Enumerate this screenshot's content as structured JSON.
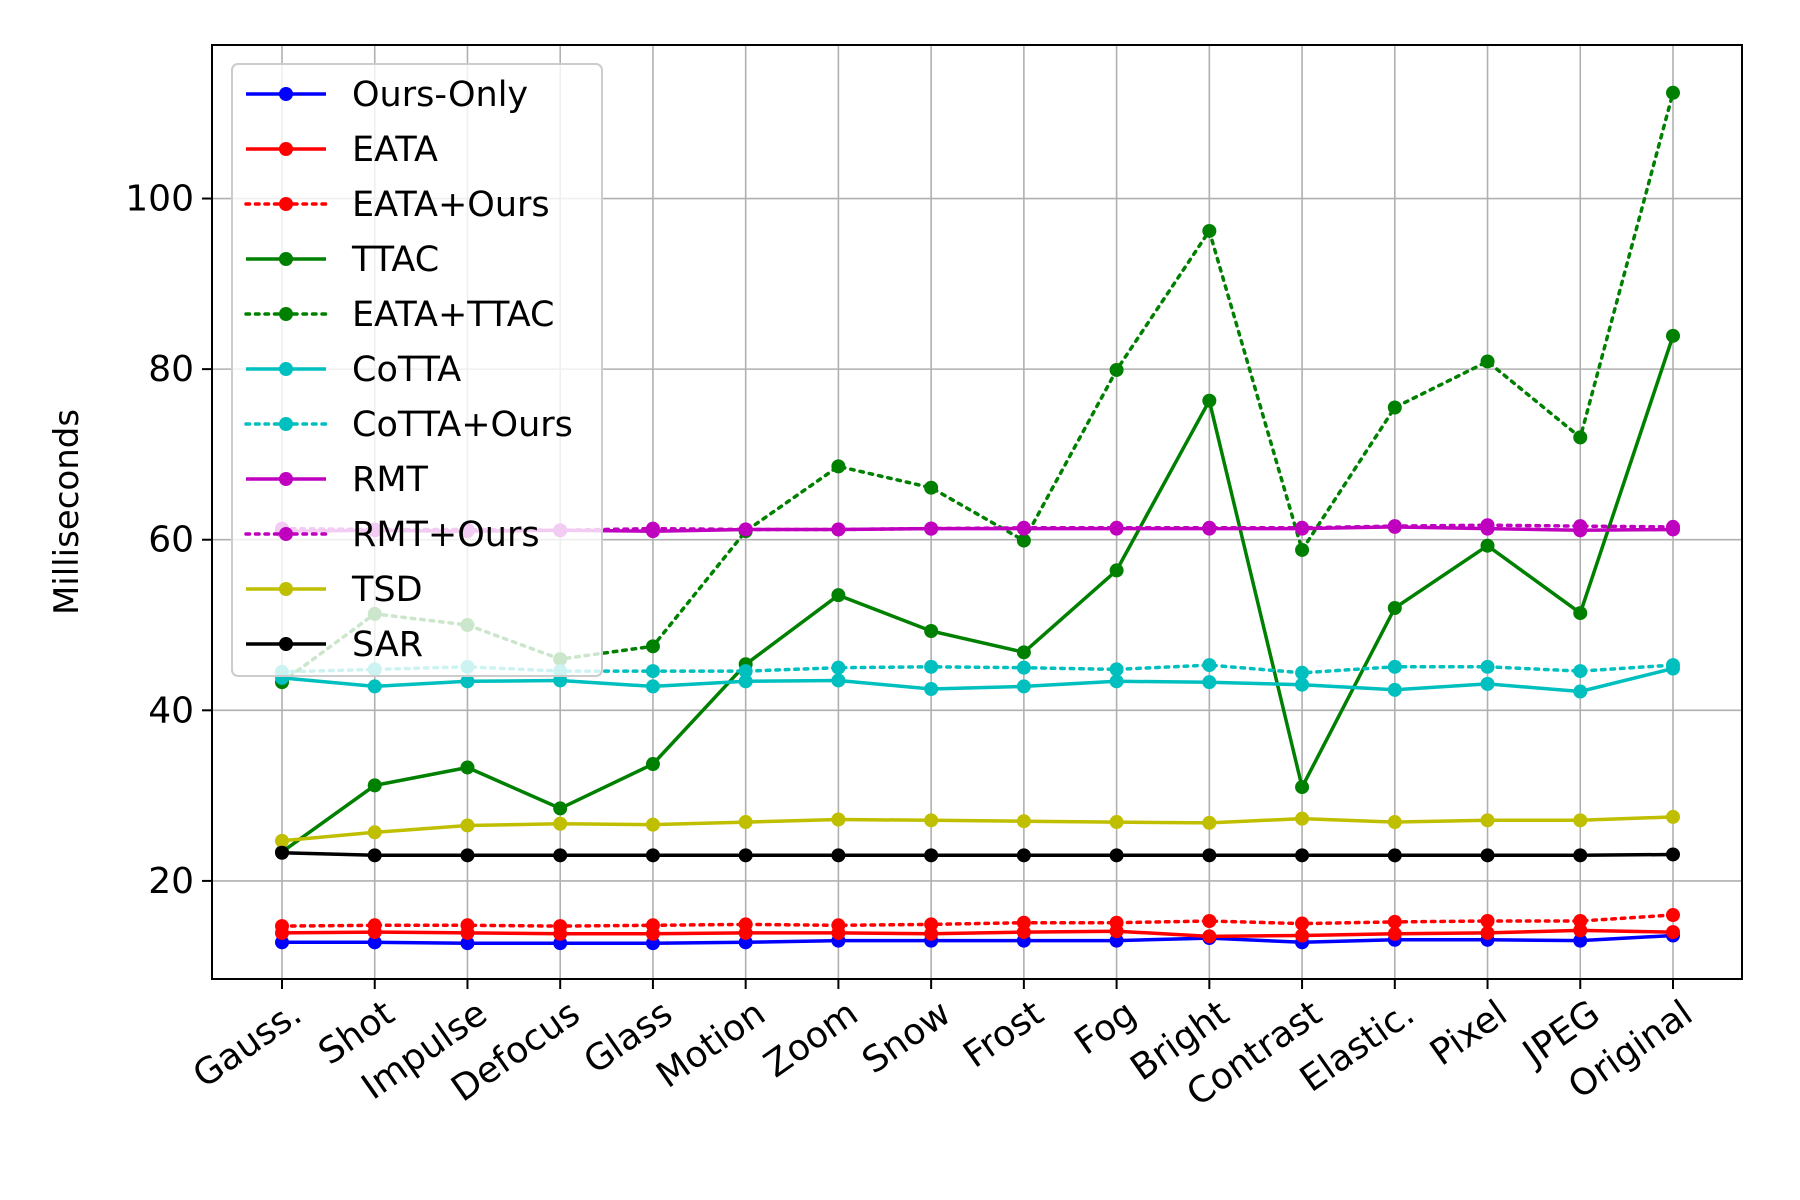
{
  "chart_data": {
    "type": "line",
    "title": "",
    "xlabel": "",
    "ylabel": "Milliseconds",
    "ylim": [
      8.5,
      118
    ],
    "yticks": [
      20,
      40,
      60,
      80,
      100
    ],
    "grid": true,
    "legend_position": "top-left",
    "categories": [
      "Gauss.",
      "Shot",
      "Impulse",
      "Defocus",
      "Glass",
      "Motion",
      "Zoom",
      "Snow",
      "Frost",
      "Fog",
      "Bright",
      "Contrast",
      "Elastic.",
      "Pixel",
      "JPEG",
      "Original"
    ],
    "series": [
      {
        "name": "Ours-Only",
        "color": "#0000ff",
        "style": "solid",
        "values": [
          12.8,
          12.8,
          12.7,
          12.7,
          12.7,
          12.8,
          13.0,
          13.0,
          13.0,
          13.0,
          13.3,
          12.8,
          13.1,
          13.1,
          13.0,
          13.6
        ]
      },
      {
        "name": "EATA",
        "color": "#ff0000",
        "style": "solid",
        "values": [
          13.9,
          14.0,
          13.9,
          13.8,
          13.8,
          13.9,
          13.9,
          13.8,
          14.0,
          14.1,
          13.5,
          13.6,
          13.8,
          13.9,
          14.2,
          14.0
        ]
      },
      {
        "name": "EATA+Ours",
        "color": "#ff0000",
        "style": "dotted",
        "values": [
          14.7,
          14.8,
          14.8,
          14.7,
          14.8,
          14.9,
          14.8,
          14.9,
          15.1,
          15.1,
          15.3,
          15.0,
          15.2,
          15.3,
          15.3,
          16.0
        ]
      },
      {
        "name": "TTAC",
        "color": "#008000",
        "style": "solid",
        "values": [
          23.4,
          31.2,
          33.3,
          28.5,
          33.7,
          45.4,
          53.5,
          49.3,
          46.8,
          56.4,
          76.3,
          31.0,
          52.0,
          59.3,
          51.4,
          83.9
        ]
      },
      {
        "name": "EATA+TTAC",
        "color": "#008000",
        "style": "dotted",
        "values": [
          43.3,
          51.3,
          50.0,
          46.0,
          47.5,
          61.0,
          68.6,
          66.1,
          59.9,
          79.9,
          96.2,
          58.8,
          75.5,
          80.9,
          72.0,
          112.4
        ]
      },
      {
        "name": "CoTTA",
        "color": "#00bfbf",
        "style": "solid",
        "values": [
          43.8,
          42.8,
          43.4,
          43.5,
          42.8,
          43.4,
          43.5,
          42.5,
          42.8,
          43.4,
          43.3,
          43.0,
          42.4,
          43.1,
          42.2,
          44.9
        ]
      },
      {
        "name": "CoTTA+Ours",
        "color": "#00bfbf",
        "style": "dotted",
        "values": [
          44.5,
          44.8,
          45.1,
          44.6,
          44.6,
          44.6,
          45.0,
          45.1,
          45.0,
          44.8,
          45.3,
          44.4,
          45.1,
          45.1,
          44.6,
          45.3
        ]
      },
      {
        "name": "RMT",
        "color": "#bf00bf",
        "style": "solid",
        "values": [
          61.0,
          61.1,
          61.0,
          61.1,
          61.0,
          61.2,
          61.2,
          61.3,
          61.3,
          61.3,
          61.3,
          61.3,
          61.5,
          61.3,
          61.1,
          61.2
        ]
      },
      {
        "name": "RMT+Ours",
        "color": "#bf00bf",
        "style": "dotted",
        "values": [
          61.3,
          61.2,
          61.2,
          61.1,
          61.3,
          61.2,
          61.2,
          61.3,
          61.4,
          61.4,
          61.4,
          61.4,
          61.6,
          61.7,
          61.6,
          61.5
        ]
      },
      {
        "name": "TSD",
        "color": "#bfbf00",
        "style": "solid",
        "values": [
          24.7,
          25.7,
          26.5,
          26.7,
          26.6,
          26.9,
          27.2,
          27.1,
          27.0,
          26.9,
          26.8,
          27.3,
          26.9,
          27.1,
          27.1,
          27.5
        ]
      },
      {
        "name": "SAR",
        "color": "#000000",
        "style": "solid",
        "values": [
          23.3,
          23.0,
          23.0,
          23.0,
          23.0,
          23.0,
          23.0,
          23.0,
          23.0,
          23.0,
          23.0,
          23.0,
          23.0,
          23.0,
          23.0,
          23.1
        ]
      }
    ]
  }
}
